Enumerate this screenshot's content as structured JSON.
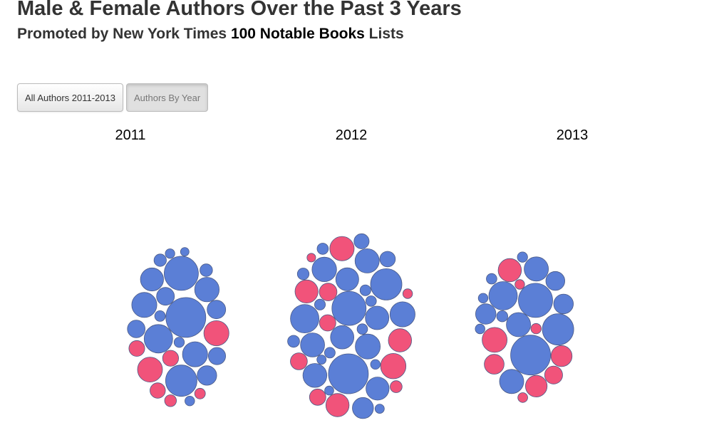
{
  "header": {
    "title": "Male & Female Authors Over the Past 3 Years",
    "subtitle_prefix": "Promoted by New York Times ",
    "subtitle_bold": "100 Notable Books",
    "subtitle_suffix": " Lists"
  },
  "controls": {
    "all_authors_label": "All Authors 2011-2013",
    "by_year_label": "Authors By Year",
    "active": "by_year"
  },
  "chart_data": {
    "type": "bubble",
    "title": "Male & Female Authors Over the Past 3 Years",
    "categories": [
      "2011",
      "2012",
      "2013"
    ],
    "colors": {
      "male": "#5b7fd6",
      "female": "#f1537a",
      "stroke": "#4a5a86"
    }
  }
}
